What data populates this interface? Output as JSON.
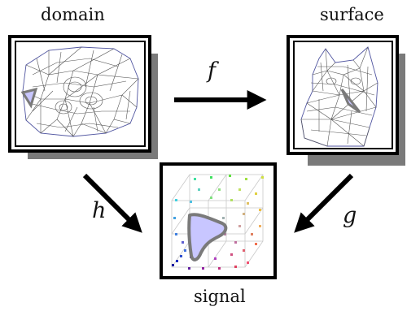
{
  "labels": {
    "domain": "domain",
    "surface": "surface",
    "signal": "signal"
  },
  "maps": {
    "f": "f",
    "h": "h",
    "g": "g"
  },
  "colors": {
    "patch_fill": "#c8c6ff",
    "patch_stroke": "#7a7a7a",
    "mesh_stroke": "#555555",
    "shadow": "#7a7a7a"
  }
}
